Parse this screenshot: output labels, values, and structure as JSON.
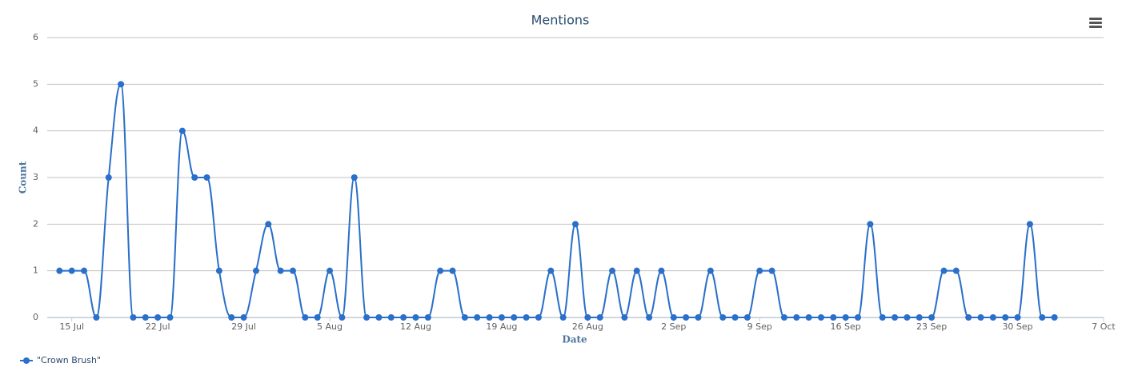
{
  "chart_data": {
    "type": "line",
    "title": "Mentions",
    "x_label": "Date",
    "y_label": "Count",
    "x": [
      "14 Jul",
      "15 Jul",
      "16 Jul",
      "17 Jul",
      "18 Jul",
      "19 Jul",
      "20 Jul",
      "21 Jul",
      "22 Jul",
      "23 Jul",
      "24 Jul",
      "25 Jul",
      "26 Jul",
      "27 Jul",
      "28 Jul",
      "29 Jul",
      "30 Jul",
      "31 Jul",
      "1 Aug",
      "2 Aug",
      "3 Aug",
      "4 Aug",
      "5 Aug",
      "6 Aug",
      "7 Aug",
      "8 Aug",
      "9 Aug",
      "10 Aug",
      "11 Aug",
      "12 Aug",
      "13 Aug",
      "14 Aug",
      "15 Aug",
      "16 Aug",
      "17 Aug",
      "18 Aug",
      "19 Aug",
      "20 Aug",
      "21 Aug",
      "22 Aug",
      "23 Aug",
      "24 Aug",
      "25 Aug",
      "26 Aug",
      "27 Aug",
      "28 Aug",
      "29 Aug",
      "30 Aug",
      "31 Aug",
      "1 Sep",
      "2 Sep",
      "3 Sep",
      "4 Sep",
      "5 Sep",
      "6 Sep",
      "7 Sep",
      "8 Sep",
      "9 Sep",
      "10 Sep",
      "11 Sep",
      "12 Sep",
      "13 Sep",
      "14 Sep",
      "15 Sep",
      "16 Sep",
      "17 Sep",
      "18 Sep",
      "19 Sep",
      "20 Sep",
      "21 Sep",
      "22 Sep",
      "23 Sep",
      "24 Sep",
      "25 Sep",
      "26 Sep",
      "27 Sep",
      "28 Sep",
      "29 Sep",
      "30 Sep",
      "1 Oct",
      "2 Oct",
      "3 Oct"
    ],
    "series": [
      {
        "name": "\"Crown Brush\"",
        "color": "#2a6fc9",
        "values": [
          1,
          1,
          1,
          0,
          3,
          5,
          0,
          0,
          0,
          0,
          4,
          3,
          3,
          1,
          0,
          0,
          1,
          2,
          1,
          1,
          0,
          0,
          1,
          0,
          3,
          0,
          0,
          0,
          0,
          0,
          0,
          1,
          1,
          0,
          0,
          0,
          0,
          0,
          0,
          0,
          1,
          0,
          2,
          0,
          0,
          1,
          0,
          1,
          0,
          1,
          0,
          0,
          0,
          1,
          0,
          0,
          0,
          1,
          1,
          0,
          0,
          0,
          0,
          0,
          0,
          0,
          2,
          0,
          0,
          0,
          0,
          0,
          1,
          1,
          0,
          0,
          0,
          0,
          0,
          2,
          0,
          0
        ]
      }
    ],
    "xlim": [
      "13 Jul",
      "7 Oct"
    ],
    "xticks": [
      "15 Jul",
      "22 Jul",
      "29 Jul",
      "5 Aug",
      "12 Aug",
      "19 Aug",
      "26 Aug",
      "2 Sep",
      "9 Sep",
      "16 Sep",
      "23 Sep",
      "30 Sep",
      "7 Oct"
    ],
    "ylim": [
      0,
      6
    ],
    "yticks": [
      0,
      1,
      2,
      3,
      4,
      5,
      6
    ],
    "grid": true,
    "spline": true,
    "legend": "bottom-left"
  }
}
